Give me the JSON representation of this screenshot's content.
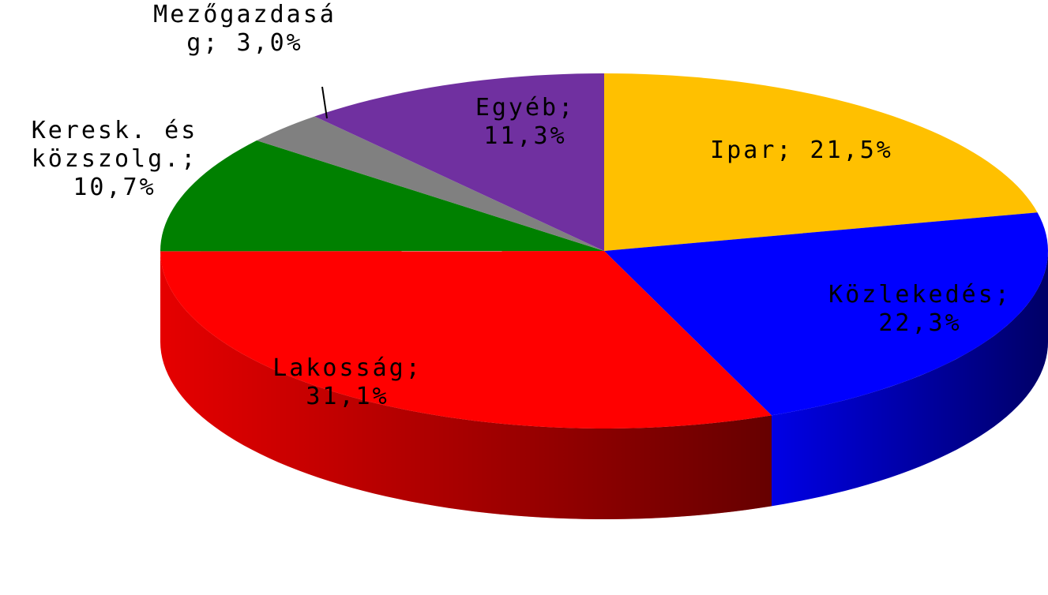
{
  "chart_data": {
    "type": "pie3d",
    "values": [
      21.5,
      22.3,
      31.1,
      10.7,
      3.0,
      11.3
    ],
    "value_labels": [
      "Ipar; 21,5%",
      "Közlekedés; 22,3%",
      "Lakosság; 31,1%",
      "Keresk. és közszolg.; 10,7%",
      "Mezőgazdaság; 3,0%",
      "Egyéb; 11,3%"
    ],
    "colors": [
      "#FFC000",
      "#0000FF",
      "#FF0000",
      "#008000",
      "#808080",
      "#7030A0"
    ]
  }
}
